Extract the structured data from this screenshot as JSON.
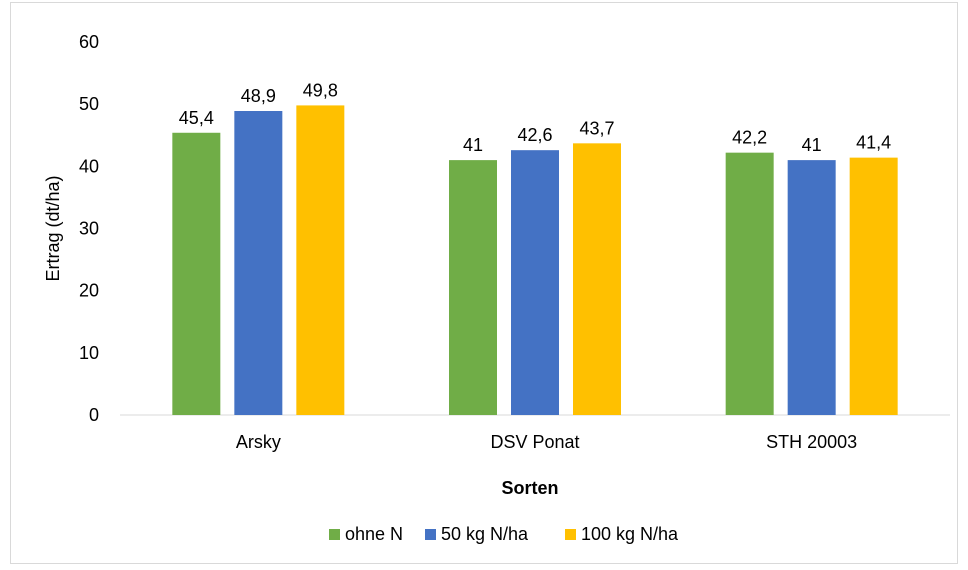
{
  "chart_data": {
    "type": "bar",
    "categories": [
      "Arsky",
      "DSV Ponat",
      "STH 20003"
    ],
    "series": [
      {
        "name": "ohne N",
        "color": "#70ad47",
        "values": [
          45.4,
          41,
          42.2
        ],
        "labels": [
          "45,4",
          "41",
          "42,2"
        ]
      },
      {
        "name": "50 kg N/ha",
        "color": "#4472c4",
        "values": [
          48.9,
          42.6,
          41
        ],
        "labels": [
          "48,9",
          "42,6",
          "41"
        ]
      },
      {
        "name": "100 kg N/ha",
        "color": "#ffc000",
        "values": [
          49.8,
          43.7,
          41.4
        ],
        "labels": [
          "49,8",
          "43,7",
          "41,4"
        ]
      }
    ],
    "xlabel": "Sorten",
    "ylabel": "Ertrag (dt/ha)",
    "ylim": [
      0,
      60
    ],
    "yticks": [
      0,
      10,
      20,
      30,
      40,
      50,
      60
    ],
    "grid": false,
    "legend_position": "bottom"
  }
}
